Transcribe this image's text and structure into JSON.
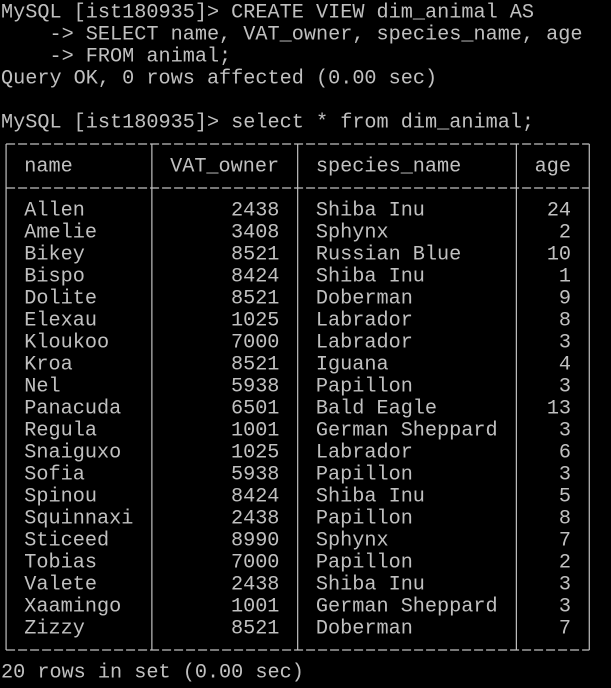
{
  "session": {
    "create_command": [
      "MySQL [ist180935]> CREATE VIEW dim_animal AS",
      "    -> SELECT name, VAT_owner, species_name, age",
      "    -> FROM animal;"
    ],
    "create_result": "Query OK, 0 rows affected (0.00 sec)",
    "select_command": "MySQL [ist180935]> select * from dim_animal;",
    "table": {
      "columns": [
        "name",
        "VAT_owner",
        "species_name",
        "age"
      ],
      "rows": [
        [
          "Allen",
          2438,
          "Shiba Inu",
          24
        ],
        [
          "Amelie",
          3408,
          "Sphynx",
          2
        ],
        [
          "Bikey",
          8521,
          "Russian Blue",
          10
        ],
        [
          "Bispo",
          8424,
          "Shiba Inu",
          1
        ],
        [
          "Dolite",
          8521,
          "Doberman",
          9
        ],
        [
          "Elexau",
          1025,
          "Labrador",
          8
        ],
        [
          "Kloukoo",
          7000,
          "Labrador",
          3
        ],
        [
          "Kroa",
          8521,
          "Iguana",
          4
        ],
        [
          "Nel",
          5938,
          "Papillon",
          3
        ],
        [
          "Panacuda",
          6501,
          "Bald Eagle",
          13
        ],
        [
          "Regula",
          1001,
          "German Sheppard",
          3
        ],
        [
          "Snaiguxo",
          1025,
          "Labrador",
          6
        ],
        [
          "Sofia",
          5938,
          "Papillon",
          3
        ],
        [
          "Spinou",
          8424,
          "Shiba Inu",
          5
        ],
        [
          "Squinnaxi",
          2438,
          "Papillon",
          8
        ],
        [
          "Sticeed",
          8990,
          "Sphynx",
          7
        ],
        [
          "Tobias",
          7000,
          "Papillon",
          2
        ],
        [
          "Valete",
          2438,
          "Shiba Inu",
          3
        ],
        [
          "Xaamingo",
          1001,
          "German Sheppard",
          3
        ],
        [
          "Zizzy",
          8521,
          "Doberman",
          7
        ]
      ]
    },
    "footer": "20 rows in set (0.00 sec)"
  }
}
